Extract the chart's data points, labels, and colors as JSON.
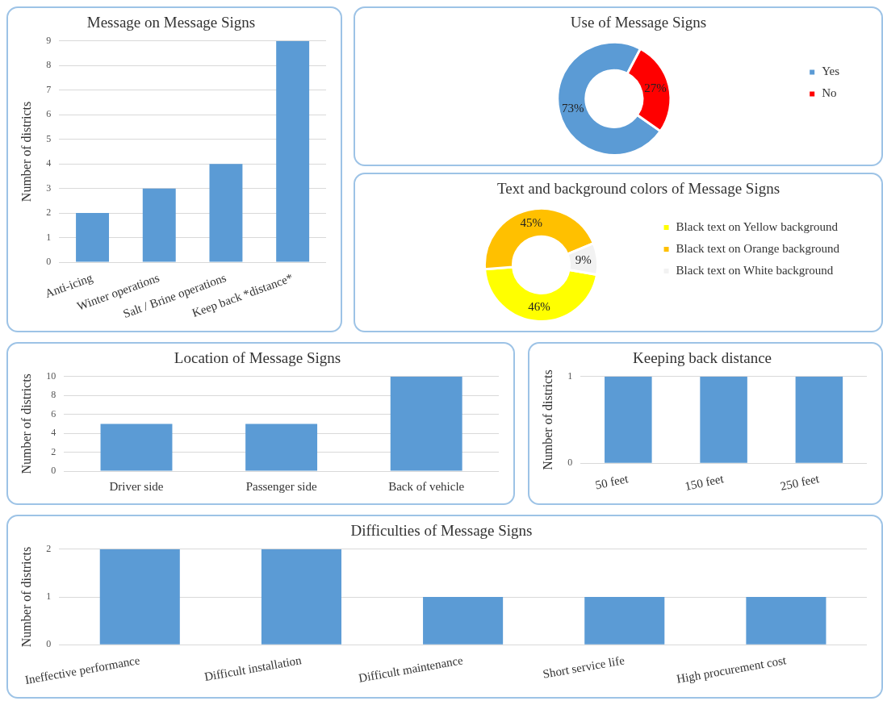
{
  "chart_data": [
    {
      "type": "bar",
      "title": "Message on Message Signs",
      "categories": [
        "Anti-icing",
        "Winter operations",
        "Salt / Brine operations",
        "Keep back *distance*"
      ],
      "values": [
        2,
        3,
        4,
        9
      ],
      "color": "#5b9bd5",
      "ylabel": "Number of districts",
      "ylim": [
        0,
        9
      ],
      "yticks": [
        0,
        1,
        2,
        3,
        4,
        5,
        6,
        7,
        8,
        9
      ],
      "grid": "y"
    },
    {
      "type": "donut",
      "title": "Use of Message Signs",
      "categories": [
        "Yes",
        "No"
      ],
      "values": [
        73,
        27
      ],
      "colors": [
        "#5b9bd5",
        "#ff0000"
      ],
      "value_labels": [
        "73%",
        "27%"
      ],
      "legend": "right"
    },
    {
      "type": "donut",
      "title": "Text and background colors of Message Signs",
      "categories": [
        "Black text on Yellow background",
        "Black text on Orange background",
        "Black text on White background"
      ],
      "values": [
        46,
        45,
        9
      ],
      "colors": [
        "#ffff00",
        "#ffc000",
        "#f2f2f2"
      ],
      "value_labels": [
        "46%",
        "45%",
        "9%"
      ],
      "legend": "right"
    },
    {
      "type": "bar",
      "title": "Location of Message Signs",
      "categories": [
        "Driver side",
        "Passenger side",
        "Back of vehicle"
      ],
      "values": [
        5,
        5,
        10
      ],
      "color": "#5b9bd5",
      "ylabel": "Number of districts",
      "ylim": [
        0,
        10
      ],
      "yticks": [
        0,
        2,
        4,
        6,
        8,
        10
      ],
      "grid": "y"
    },
    {
      "type": "bar",
      "title": "Keeping back distance",
      "categories": [
        "50 feet",
        "150 feet",
        "250 feet"
      ],
      "values": [
        1,
        1,
        1
      ],
      "color": "#5b9bd5",
      "ylabel": "Number of districts",
      "ylim": [
        0,
        1
      ],
      "yticks": [
        0,
        1
      ],
      "grid": "y"
    },
    {
      "type": "bar",
      "title": "Difficulties of Message Signs",
      "categories": [
        "Ineffective performance",
        "Difficult installation",
        "Difficult maintenance",
        "Short service life",
        "High procurement cost"
      ],
      "values": [
        2,
        2,
        1,
        1,
        1
      ],
      "color": "#5b9bd5",
      "ylabel": "Number of districts",
      "ylim": [
        0,
        2
      ],
      "yticks": [
        0,
        1,
        2
      ],
      "grid": "y"
    }
  ]
}
